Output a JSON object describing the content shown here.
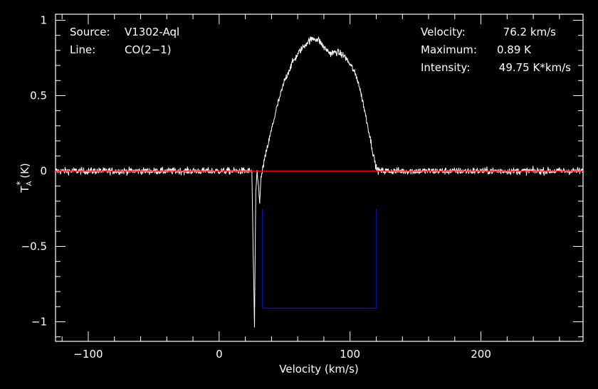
{
  "chart_data": {
    "type": "line",
    "xlabel": "Velocity (km/s)",
    "ylabel_main": "T",
    "ylabel_sub": "A",
    "ylabel_sup": "*",
    "ylabel_unit": "(K)",
    "xlim": [
      -125,
      278
    ],
    "ylim": [
      -1.13,
      1.04
    ],
    "xticks": [
      {
        "v": -100,
        "label": "−100"
      },
      {
        "v": 0,
        "label": "0"
      },
      {
        "v": 100,
        "label": "100"
      },
      {
        "v": 200,
        "label": "200"
      }
    ],
    "yticks": [
      {
        "v": 1,
        "label": "1"
      },
      {
        "v": 0.5,
        "label": "0.5"
      },
      {
        "v": 0,
        "label": "0"
      },
      {
        "v": -0.5,
        "label": "−0.5"
      },
      {
        "v": -1,
        "label": "−1"
      }
    ],
    "baseline": {
      "value": 0,
      "color": "#ff0000"
    },
    "window": {
      "x1": 33,
      "x2": 120,
      "top": -0.25,
      "bottom": -0.91,
      "color": "#0000ff"
    },
    "series": [
      {
        "color": "#ffffff",
        "noise": 0.022,
        "points": [
          [
            -125,
            0
          ],
          [
            25,
            0
          ],
          [
            26,
            -0.55
          ],
          [
            27,
            -1.03
          ],
          [
            28,
            -0.15
          ],
          [
            29,
            0.0
          ],
          [
            31,
            -0.2
          ],
          [
            32,
            -0.05
          ],
          [
            34,
            0.05
          ],
          [
            38,
            0.2
          ],
          [
            44,
            0.42
          ],
          [
            50,
            0.6
          ],
          [
            56,
            0.72
          ],
          [
            62,
            0.8
          ],
          [
            68,
            0.86
          ],
          [
            72,
            0.88
          ],
          [
            76,
            0.87
          ],
          [
            80,
            0.82
          ],
          [
            85,
            0.78
          ],
          [
            90,
            0.79
          ],
          [
            96,
            0.76
          ],
          [
            102,
            0.68
          ],
          [
            106,
            0.6
          ],
          [
            110,
            0.45
          ],
          [
            114,
            0.28
          ],
          [
            118,
            0.1
          ],
          [
            120,
            0.02
          ],
          [
            122,
            0
          ],
          [
            278,
            0
          ]
        ]
      }
    ],
    "annotations_left": [
      {
        "label": "Source:",
        "value": "V1302-Aql"
      },
      {
        "label": "Line:",
        "value": "CO(2−1)"
      }
    ],
    "annotations_right": [
      {
        "label": "Velocity:",
        "value": "76.2 km/s"
      },
      {
        "label": "Maximum:",
        "value": "0.89 K"
      },
      {
        "label": "Intensity:",
        "value": "49.75 K*km/s"
      }
    ]
  }
}
